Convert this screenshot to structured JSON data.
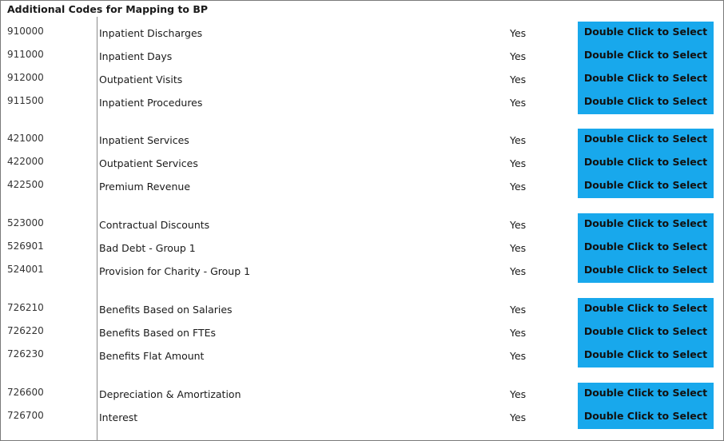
{
  "header": {
    "title": "Additional Codes for Mapping to BP"
  },
  "button_label": "Double Click to Select",
  "groups": [
    {
      "rows": [
        {
          "code": "910000",
          "label": "Inpatient Discharges",
          "flag": "Yes"
        },
        {
          "code": "911000",
          "label": "Inpatient Days",
          "flag": "Yes"
        },
        {
          "code": "912000",
          "label": "Outpatient Visits",
          "flag": "Yes"
        },
        {
          "code": "911500",
          "label": "Inpatient Procedures",
          "flag": "Yes"
        }
      ]
    },
    {
      "rows": [
        {
          "code": "421000",
          "label": "Inpatient Services",
          "flag": "Yes"
        },
        {
          "code": "422000",
          "label": "Outpatient Services",
          "flag": "Yes"
        },
        {
          "code": "422500",
          "label": "Premium Revenue",
          "flag": "Yes"
        }
      ]
    },
    {
      "rows": [
        {
          "code": "523000",
          "label": "Contractual Discounts",
          "flag": "Yes"
        },
        {
          "code": "526901",
          "label": "Bad Debt - Group 1",
          "flag": "Yes"
        },
        {
          "code": "524001",
          "label": "Provision for Charity - Group 1",
          "flag": "Yes"
        }
      ]
    },
    {
      "rows": [
        {
          "code": "726210",
          "label": "Benefits Based on Salaries",
          "flag": "Yes"
        },
        {
          "code": "726220",
          "label": "Benefits Based on FTEs",
          "flag": "Yes"
        },
        {
          "code": "726230",
          "label": "Benefits Flat Amount",
          "flag": "Yes"
        }
      ]
    },
    {
      "rows": [
        {
          "code": "726600",
          "label": "Depreciation & Amortization",
          "flag": "Yes"
        },
        {
          "code": "726700",
          "label": "Interest",
          "flag": "Yes"
        }
      ]
    }
  ],
  "colors": {
    "button_bg": "#18a8ec",
    "border": "#7a7a7a"
  }
}
